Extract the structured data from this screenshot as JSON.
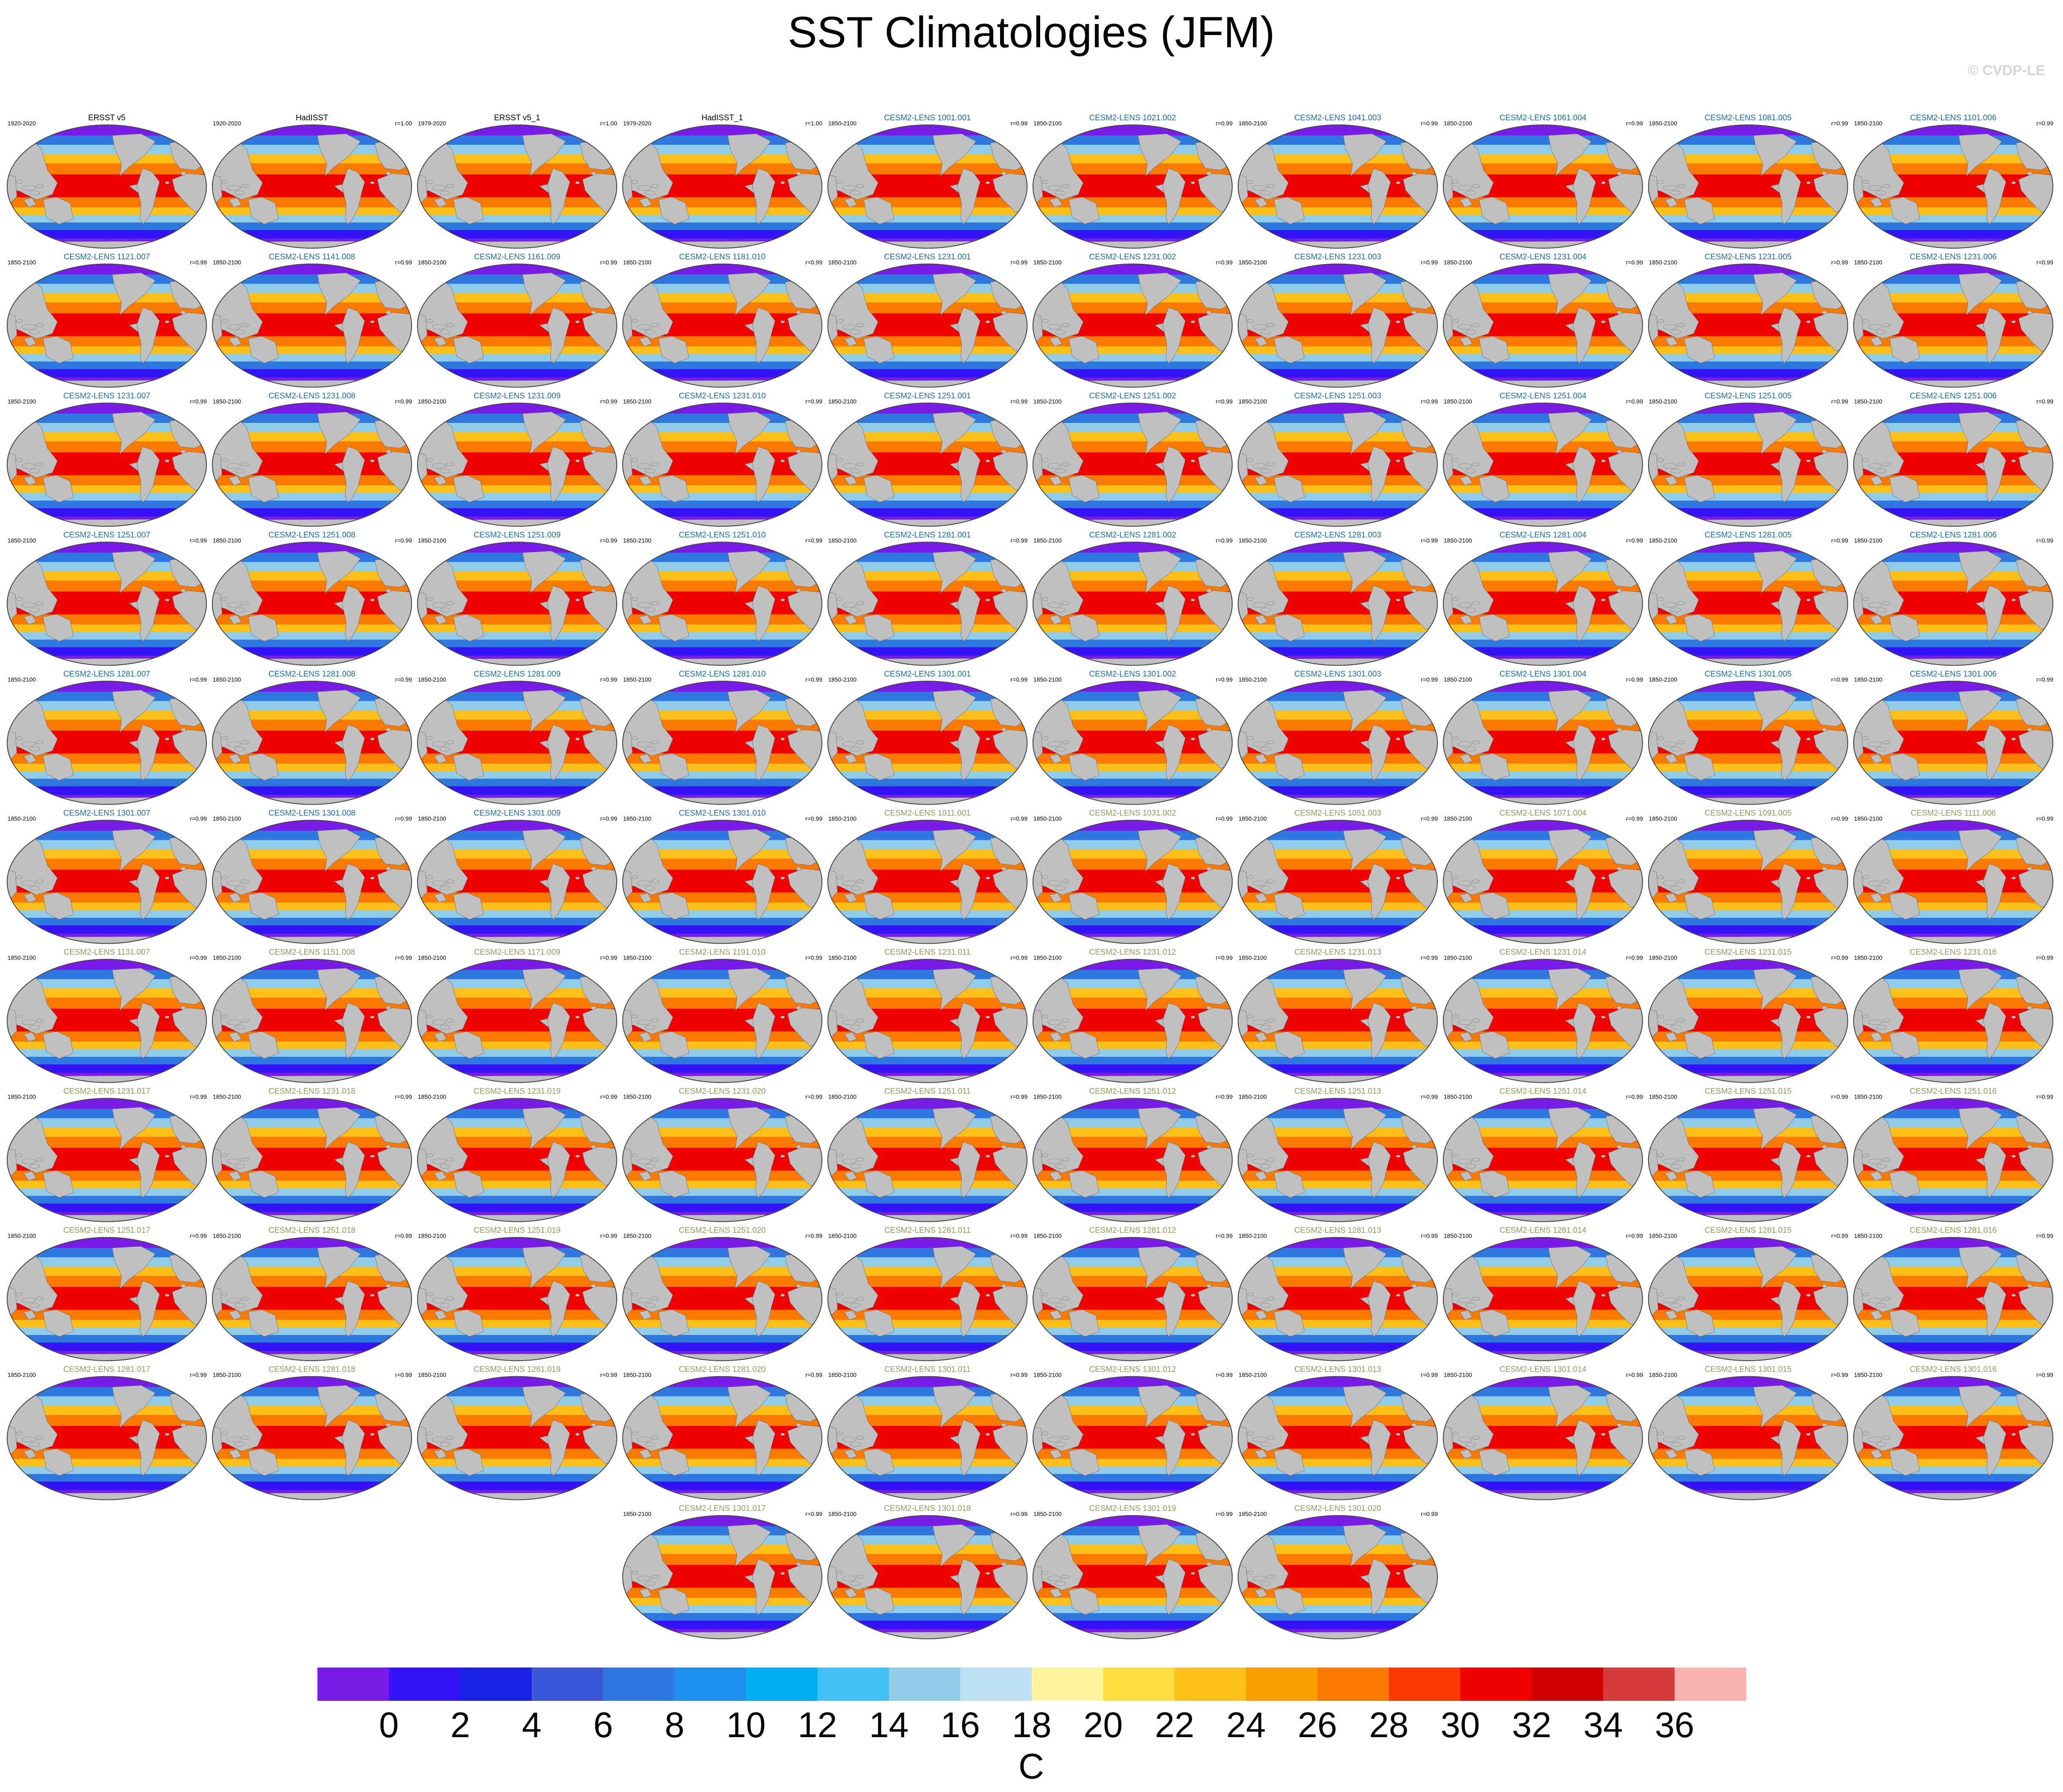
{
  "title": "SST Climatologies (JFM)",
  "watermark": "© CVDP-LE",
  "chart_data": {
    "type": "heatmap",
    "title": "SST Climatologies (JFM)",
    "description": "Map panels (Robinson projection) of January–March sea surface temperature climatology per dataset",
    "panels": [
      {
        "name": "ERSST v5",
        "period": "1920-2020",
        "r": "",
        "name_color": "#000000"
      },
      {
        "name": "HadISST",
        "period": "1920-2020",
        "r": "r=1.00",
        "name_color": "#000000"
      },
      {
        "name": "ERSST v5_1",
        "period": "1979-2020",
        "r": "r=1.00",
        "name_color": "#000000"
      },
      {
        "name": "HadISST_1",
        "period": "1979-2020",
        "r": "r=1.00",
        "name_color": "#000000"
      },
      {
        "name": "CESM2-LENS 1001.001",
        "period": "1850-2100",
        "r": "r=0.99",
        "name_color": "#1a6fb0"
      },
      {
        "name": "CESM2-LENS 1021.002",
        "period": "1850-2100",
        "r": "r=0.99",
        "name_color": "#1a6fb0"
      },
      {
        "name": "CESM2-LENS 1041.003",
        "period": "1850-2100",
        "r": "r=0.99",
        "name_color": "#1a6fb0"
      },
      {
        "name": "CESM2-LENS 1061.004",
        "period": "1850-2100",
        "r": "r=0.99",
        "name_color": "#1a6fb0"
      },
      {
        "name": "CESM2-LENS 1081.005",
        "period": "1850-2100",
        "r": "r=0.99",
        "name_color": "#1a6fb0"
      },
      {
        "name": "CESM2-LENS 1101.006",
        "period": "1850-2100",
        "r": "r=0.99",
        "name_color": "#1a6fb0"
      },
      {
        "name": "CESM2-LENS 1121.007",
        "period": "1850-2100",
        "r": "r=0.99",
        "name_color": "#1a6fb0"
      },
      {
        "name": "CESM2-LENS 1141.008",
        "period": "1850-2100",
        "r": "r=0.99",
        "name_color": "#1a6fb0"
      },
      {
        "name": "CESM2-LENS 1161.009",
        "period": "1850-2100",
        "r": "r=0.99",
        "name_color": "#1a6fb0"
      },
      {
        "name": "CESM2-LENS 1181.010",
        "period": "1850-2100",
        "r": "r=0.99",
        "name_color": "#1a6fb0"
      },
      {
        "name": "CESM2-LENS 1231.001",
        "period": "1850-2100",
        "r": "r=0.99",
        "name_color": "#1a6fb0"
      },
      {
        "name": "CESM2-LENS 1231.002",
        "period": "1850-2100",
        "r": "r=0.99",
        "name_color": "#1a6fb0"
      },
      {
        "name": "CESM2-LENS 1231.003",
        "period": "1850-2100",
        "r": "r=0.99",
        "name_color": "#1a6fb0"
      },
      {
        "name": "CESM2-LENS 1231.004",
        "period": "1850-2100",
        "r": "r=0.99",
        "name_color": "#1a6fb0"
      },
      {
        "name": "CESM2-LENS 1231.005",
        "period": "1850-2100",
        "r": "r=0.99",
        "name_color": "#1a6fb0"
      },
      {
        "name": "CESM2-LENS 1231.006",
        "period": "1850-2100",
        "r": "r=0.99",
        "name_color": "#1a6fb0"
      },
      {
        "name": "CESM2-LENS 1231.007",
        "period": "1850-2100",
        "r": "r=0.99",
        "name_color": "#1a6fb0"
      },
      {
        "name": "CESM2-LENS 1231.008",
        "period": "1850-2100",
        "r": "r=0.99",
        "name_color": "#1a6fb0"
      },
      {
        "name": "CESM2-LENS 1231.009",
        "period": "1850-2100",
        "r": "r=0.99",
        "name_color": "#1a6fb0"
      },
      {
        "name": "CESM2-LENS 1231.010",
        "period": "1850-2100",
        "r": "r=0.99",
        "name_color": "#1a6fb0"
      },
      {
        "name": "CESM2-LENS 1251.001",
        "period": "1850-2100",
        "r": "r=0.99",
        "name_color": "#1a6fb0"
      },
      {
        "name": "CESM2-LENS 1251.002",
        "period": "1850-2100",
        "r": "r=0.99",
        "name_color": "#1a6fb0"
      },
      {
        "name": "CESM2-LENS 1251.003",
        "period": "1850-2100",
        "r": "r=0.99",
        "name_color": "#1a6fb0"
      },
      {
        "name": "CESM2-LENS 1251.004",
        "period": "1850-2100",
        "r": "r=0.99",
        "name_color": "#1a6fb0"
      },
      {
        "name": "CESM2-LENS 1251.005",
        "period": "1850-2100",
        "r": "r=0.99",
        "name_color": "#1a6fb0"
      },
      {
        "name": "CESM2-LENS 1251.006",
        "period": "1850-2100",
        "r": "r=0.99",
        "name_color": "#1a6fb0"
      },
      {
        "name": "CESM2-LENS 1251.007",
        "period": "1850-2100",
        "r": "r=0.99",
        "name_color": "#1a6fb0"
      },
      {
        "name": "CESM2-LENS 1251.008",
        "period": "1850-2100",
        "r": "r=0.99",
        "name_color": "#1a6fb0"
      },
      {
        "name": "CESM2-LENS 1251.009",
        "period": "1850-2100",
        "r": "r=0.99",
        "name_color": "#1a6fb0"
      },
      {
        "name": "CESM2-LENS 1251.010",
        "period": "1850-2100",
        "r": "r=0.99",
        "name_color": "#1a6fb0"
      },
      {
        "name": "CESM2-LENS 1281.001",
        "period": "1850-2100",
        "r": "r=0.99",
        "name_color": "#1a6fb0"
      },
      {
        "name": "CESM2-LENS 1281.002",
        "period": "1850-2100",
        "r": "r=0.99",
        "name_color": "#1a6fb0"
      },
      {
        "name": "CESM2-LENS 1281.003",
        "period": "1850-2100",
        "r": "r=0.99",
        "name_color": "#1a6fb0"
      },
      {
        "name": "CESM2-LENS 1281.004",
        "period": "1850-2100",
        "r": "r=0.99",
        "name_color": "#1a6fb0"
      },
      {
        "name": "CESM2-LENS 1281.005",
        "period": "1850-2100",
        "r": "r=0.99",
        "name_color": "#1a6fb0"
      },
      {
        "name": "CESM2-LENS 1281.006",
        "period": "1850-2100",
        "r": "r=0.99",
        "name_color": "#1a6fb0"
      },
      {
        "name": "CESM2-LENS 1281.007",
        "period": "1850-2100",
        "r": "r=0.99",
        "name_color": "#1a6fb0"
      },
      {
        "name": "CESM2-LENS 1281.008",
        "period": "1850-2100",
        "r": "r=0.99",
        "name_color": "#1a6fb0"
      },
      {
        "name": "CESM2-LENS 1281.009",
        "period": "1850-2100",
        "r": "r=0.99",
        "name_color": "#1a6fb0"
      },
      {
        "name": "CESM2-LENS 1281.010",
        "period": "1850-2100",
        "r": "r=0.99",
        "name_color": "#1a6fb0"
      },
      {
        "name": "CESM2-LENS 1301.001",
        "period": "1850-2100",
        "r": "r=0.99",
        "name_color": "#1a6fb0"
      },
      {
        "name": "CESM2-LENS 1301.002",
        "period": "1850-2100",
        "r": "r=0.99",
        "name_color": "#1a6fb0"
      },
      {
        "name": "CESM2-LENS 1301.003",
        "period": "1850-2100",
        "r": "r=0.99",
        "name_color": "#1a6fb0"
      },
      {
        "name": "CESM2-LENS 1301.004",
        "period": "1850-2100",
        "r": "r=0.99",
        "name_color": "#1a6fb0"
      },
      {
        "name": "CESM2-LENS 1301.005",
        "period": "1850-2100",
        "r": "r=0.99",
        "name_color": "#1a6fb0"
      },
      {
        "name": "CESM2-LENS 1301.006",
        "period": "1850-2100",
        "r": "r=0.99",
        "name_color": "#1a6fb0"
      },
      {
        "name": "CESM2-LENS 1301.007",
        "period": "1850-2100",
        "r": "r=0.99",
        "name_color": "#1a6fb0"
      },
      {
        "name": "CESM2-LENS 1301.008",
        "period": "1850-2100",
        "r": "r=0.99",
        "name_color": "#1a6fb0"
      },
      {
        "name": "CESM2-LENS 1301.009",
        "period": "1850-2100",
        "r": "r=0.99",
        "name_color": "#1a6fb0"
      },
      {
        "name": "CESM2-LENS 1301.010",
        "period": "1850-2100",
        "r": "r=0.99",
        "name_color": "#1a6fb0"
      },
      {
        "name": "CESM2-LENS 1011.001",
        "period": "1850-2100",
        "r": "r=0.99",
        "name_color": "#8aa05a"
      },
      {
        "name": "CESM2-LENS 1031.002",
        "period": "1850-2100",
        "r": "r=0.99",
        "name_color": "#8aa05a"
      },
      {
        "name": "CESM2-LENS 1051.003",
        "period": "1850-2100",
        "r": "r=0.99",
        "name_color": "#8aa05a"
      },
      {
        "name": "CESM2-LENS 1071.004",
        "period": "1850-2100",
        "r": "r=0.99",
        "name_color": "#8aa05a"
      },
      {
        "name": "CESM2-LENS 1091.005",
        "period": "1850-2100",
        "r": "r=0.99",
        "name_color": "#8aa05a"
      },
      {
        "name": "CESM2-LENS 1111.006",
        "period": "1850-2100",
        "r": "r=0.99",
        "name_color": "#8aa05a"
      },
      {
        "name": "CESM2-LENS 1131.007",
        "period": "1850-2100",
        "r": "r=0.99",
        "name_color": "#8aa05a"
      },
      {
        "name": "CESM2-LENS 1151.008",
        "period": "1850-2100",
        "r": "r=0.99",
        "name_color": "#8aa05a"
      },
      {
        "name": "CESM2-LENS 1171.009",
        "period": "1850-2100",
        "r": "r=0.99",
        "name_color": "#8aa05a"
      },
      {
        "name": "CESM2-LENS 1191.010",
        "period": "1850-2100",
        "r": "r=0.99",
        "name_color": "#8aa05a"
      },
      {
        "name": "CESM2-LENS 1231.011",
        "period": "1850-2100",
        "r": "r=0.99",
        "name_color": "#8aa05a"
      },
      {
        "name": "CESM2-LENS 1231.012",
        "period": "1850-2100",
        "r": "r=0.99",
        "name_color": "#8aa05a"
      },
      {
        "name": "CESM2-LENS 1231.013",
        "period": "1850-2100",
        "r": "r=0.99",
        "name_color": "#8aa05a"
      },
      {
        "name": "CESM2-LENS 1231.014",
        "period": "1850-2100",
        "r": "r=0.99",
        "name_color": "#8aa05a"
      },
      {
        "name": "CESM2-LENS 1231.015",
        "period": "1850-2100",
        "r": "r=0.99",
        "name_color": "#8aa05a"
      },
      {
        "name": "CESM2-LENS 1231.016",
        "period": "1850-2100",
        "r": "r=0.99",
        "name_color": "#8aa05a"
      },
      {
        "name": "CESM2-LENS 1231.017",
        "period": "1850-2100",
        "r": "r=0.99",
        "name_color": "#8aa05a"
      },
      {
        "name": "CESM2-LENS 1231.018",
        "period": "1850-2100",
        "r": "r=0.99",
        "name_color": "#8aa05a"
      },
      {
        "name": "CESM2-LENS 1231.019",
        "period": "1850-2100",
        "r": "r=0.99",
        "name_color": "#8aa05a"
      },
      {
        "name": "CESM2-LENS 1231.020",
        "period": "1850-2100",
        "r": "r=0.99",
        "name_color": "#8aa05a"
      },
      {
        "name": "CESM2-LENS 1251.011",
        "period": "1850-2100",
        "r": "r=0.99",
        "name_color": "#8aa05a"
      },
      {
        "name": "CESM2-LENS 1251.012",
        "period": "1850-2100",
        "r": "r=0.99",
        "name_color": "#8aa05a"
      },
      {
        "name": "CESM2-LENS 1251.013",
        "period": "1850-2100",
        "r": "r=0.99",
        "name_color": "#8aa05a"
      },
      {
        "name": "CESM2-LENS 1251.014",
        "period": "1850-2100",
        "r": "r=0.99",
        "name_color": "#8aa05a"
      },
      {
        "name": "CESM2-LENS 1251.015",
        "period": "1850-2100",
        "r": "r=0.99",
        "name_color": "#8aa05a"
      },
      {
        "name": "CESM2-LENS 1251.016",
        "period": "1850-2100",
        "r": "r=0.99",
        "name_color": "#8aa05a"
      },
      {
        "name": "CESM2-LENS 1251.017",
        "period": "1850-2100",
        "r": "r=0.99",
        "name_color": "#8aa05a"
      },
      {
        "name": "CESM2-LENS 1251.018",
        "period": "1850-2100",
        "r": "r=0.99",
        "name_color": "#8aa05a"
      },
      {
        "name": "CESM2-LENS 1251.019",
        "period": "1850-2100",
        "r": "r=0.99",
        "name_color": "#8aa05a"
      },
      {
        "name": "CESM2-LENS 1251.020",
        "period": "1850-2100",
        "r": "r=0.99",
        "name_color": "#8aa05a"
      },
      {
        "name": "CESM2-LENS 1281.011",
        "period": "1850-2100",
        "r": "r=0.99",
        "name_color": "#8aa05a"
      },
      {
        "name": "CESM2-LENS 1281.012",
        "period": "1850-2100",
        "r": "r=0.99",
        "name_color": "#8aa05a"
      },
      {
        "name": "CESM2-LENS 1281.013",
        "period": "1850-2100",
        "r": "r=0.99",
        "name_color": "#8aa05a"
      },
      {
        "name": "CESM2-LENS 1281.014",
        "period": "1850-2100",
        "r": "r=0.99",
        "name_color": "#8aa05a"
      },
      {
        "name": "CESM2-LENS 1281.015",
        "period": "1850-2100",
        "r": "r=0.99",
        "name_color": "#8aa05a"
      },
      {
        "name": "CESM2-LENS 1281.016",
        "period": "1850-2100",
        "r": "r=0.99",
        "name_color": "#8aa05a"
      },
      {
        "name": "CESM2-LENS 1281.017",
        "period": "1850-2100",
        "r": "r=0.99",
        "name_color": "#8aa05a"
      },
      {
        "name": "CESM2-LENS 1281.018",
        "period": "1850-2100",
        "r": "r=0.99",
        "name_color": "#8aa05a"
      },
      {
        "name": "CESM2-LENS 1281.019",
        "period": "1850-2100",
        "r": "r=0.99",
        "name_color": "#8aa05a"
      },
      {
        "name": "CESM2-LENS 1281.020",
        "period": "1850-2100",
        "r": "r=0.99",
        "name_color": "#8aa05a"
      },
      {
        "name": "CESM2-LENS 1301.011",
        "period": "1850-2100",
        "r": "r=0.99",
        "name_color": "#8aa05a"
      },
      {
        "name": "CESM2-LENS 1301.012",
        "period": "1850-2100",
        "r": "r=0.99",
        "name_color": "#8aa05a"
      },
      {
        "name": "CESM2-LENS 1301.013",
        "period": "1850-2100",
        "r": "r=0.99",
        "name_color": "#8aa05a"
      },
      {
        "name": "CESM2-LENS 1301.014",
        "period": "1850-2100",
        "r": "r=0.99",
        "name_color": "#8aa05a"
      },
      {
        "name": "CESM2-LENS 1301.015",
        "period": "1850-2100",
        "r": "r=0.99",
        "name_color": "#8aa05a"
      },
      {
        "name": "CESM2-LENS 1301.016",
        "period": "1850-2100",
        "r": "r=0.99",
        "name_color": "#8aa05a"
      },
      {
        "name": "CESM2-LENS 1301.017",
        "period": "1850-2100",
        "r": "r=0.99",
        "name_color": "#8aa05a"
      },
      {
        "name": "CESM2-LENS 1301.018",
        "period": "1850-2100",
        "r": "r=0.99",
        "name_color": "#8aa05a"
      },
      {
        "name": "CESM2-LENS 1301.019",
        "period": "1850-2100",
        "r": "r=0.99",
        "name_color": "#8aa05a"
      },
      {
        "name": "CESM2-LENS 1301.020",
        "period": "1850-2100",
        "r": "r=0.99",
        "name_color": "#8aa05a"
      }
    ],
    "colorbar": {
      "unit": "C",
      "tick_labels": [
        "0",
        "2",
        "4",
        "6",
        "8",
        "10",
        "12",
        "14",
        "16",
        "18",
        "20",
        "22",
        "24",
        "26",
        "28",
        "30",
        "32",
        "34",
        "36"
      ],
      "levels": [
        0,
        2,
        4,
        6,
        8,
        10,
        12,
        14,
        16,
        18,
        20,
        22,
        24,
        26,
        28,
        30,
        32,
        34,
        36
      ],
      "colors": [
        "#7a1ce8",
        "#3414f6",
        "#1a22e6",
        "#3c56d8",
        "#2e78e0",
        "#1e90f2",
        "#00b0f0",
        "#40c0f4",
        "#90cce8",
        "#bcdff2",
        "#fff5a0",
        "#fde040",
        "#fcc018",
        "#f8a000",
        "#fa7a00",
        "#fa3800",
        "#f20000",
        "#d00000",
        "#d63a3a",
        "#f8b0b0"
      ]
    },
    "ocean_colors": {
      "polar": "#7a1ce8",
      "subpolar": "#3414f6",
      "temperate": "#2e78e0",
      "mid": "#90cce8",
      "subtropical": "#fcc018",
      "tropical": "#fa7a00",
      "warm_pool": "#f20000",
      "land": "#c0c0c0",
      "outline": "#444444"
    }
  }
}
